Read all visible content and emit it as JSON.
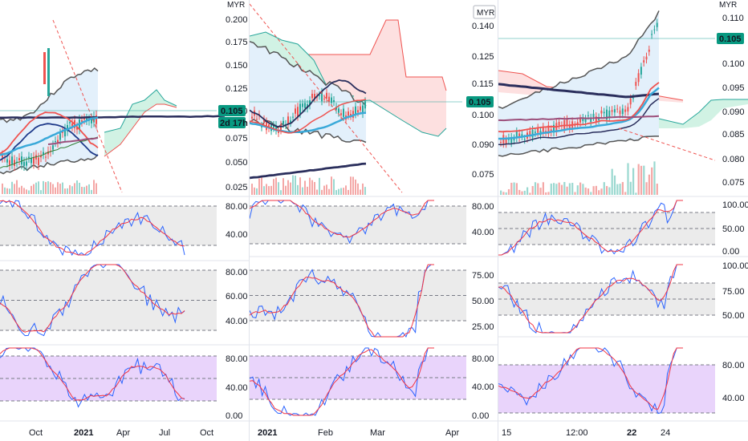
{
  "currency": "MYR",
  "colors": {
    "up": "#26a69a",
    "down": "#ef5350",
    "blue": "#2962ff",
    "red": "#f23645",
    "navy": "#2a2e5c",
    "cloud_green": "#d1f2e4",
    "cloud_red": "#fde0e0",
    "band_gray": "#ebebeb",
    "band_purple": "#e9d4fb",
    "price_tag": "#089981",
    "grid_dash": "#787b86"
  },
  "charts": [
    {
      "id": "left",
      "price_axis_labels": [
        "0.200",
        "0.175",
        "0.150",
        "0.125",
        "0.100",
        "0.075",
        "0.050",
        "0.025"
      ],
      "price_tag": "0.105",
      "countdown_tag": "2d 17h",
      "osc1_labels": [
        "80.00",
        "40.00"
      ],
      "osc2_labels": [
        "80.00",
        "60.00",
        "40.00"
      ],
      "osc3_labels": [
        "80.00",
        "40.00",
        "0.00"
      ],
      "time_labels": [
        "Oct",
        "2021",
        "Apr",
        "Jul",
        "Oct"
      ]
    },
    {
      "id": "middle",
      "price_axis_labels": [
        "0.140",
        "0.125",
        "0.115",
        "0.100",
        "0.090",
        "0.075"
      ],
      "price_tag": "0.105",
      "osc1_labels": [
        "80.00",
        "40.00"
      ],
      "osc2_labels": [
        "75.00",
        "50.00",
        "25.00"
      ],
      "osc3_labels": [
        "80.00",
        "40.00",
        "0.00"
      ],
      "time_labels": [
        "2021",
        "Feb",
        "Mar",
        "Apr"
      ]
    },
    {
      "id": "right",
      "price_axis_labels": [
        "0.110",
        "0.105",
        "0.100",
        "0.095",
        "0.090",
        "0.085",
        "0.080",
        "0.075"
      ],
      "price_tag": "0.105",
      "osc1_labels": [
        "100.00",
        "50.00",
        "0.00"
      ],
      "osc2_labels": [
        "100.00",
        "75.00",
        "50.00"
      ],
      "osc3_labels": [
        "80.00",
        "40.00"
      ],
      "time_labels": [
        "15",
        "12:00",
        "22",
        "24"
      ]
    }
  ]
}
